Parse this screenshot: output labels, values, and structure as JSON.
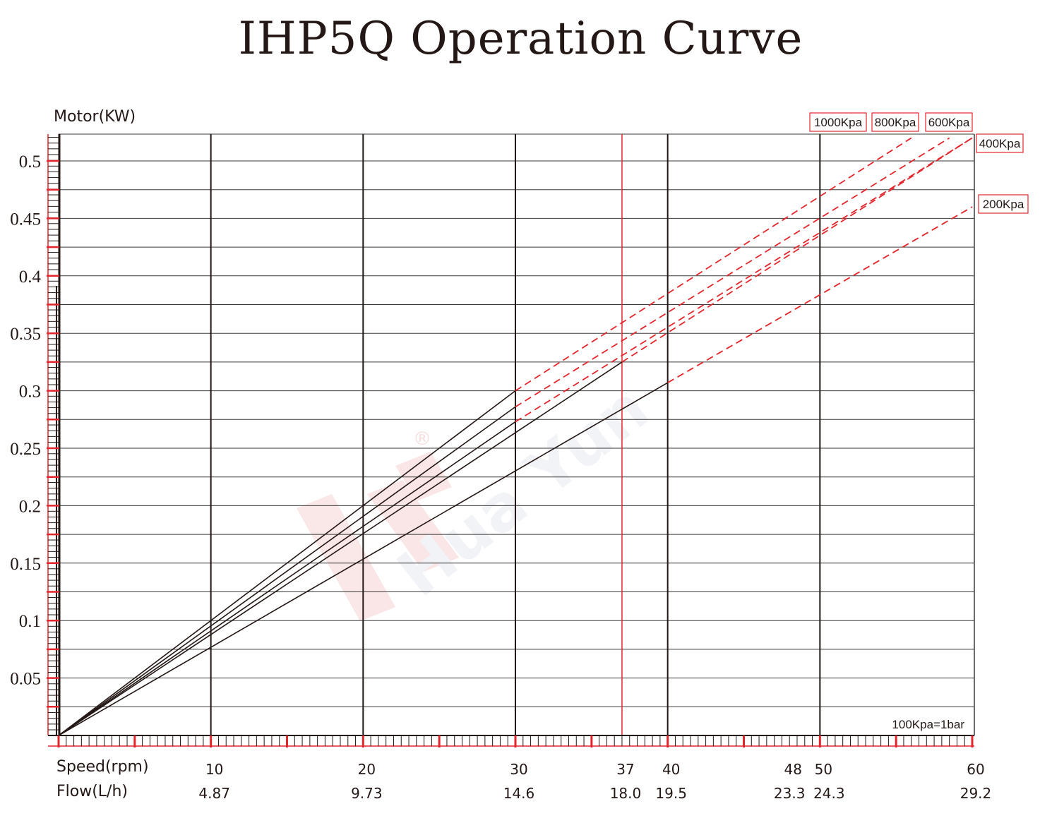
{
  "page": {
    "title": "IHP5Q Operation Curve"
  },
  "colors": {
    "text": "#231815",
    "accent": "#e3262d",
    "line": "#231815",
    "watermark": "#e8eaf0"
  },
  "watermark": {
    "text": "Hua Yun",
    "mark": "®"
  },
  "chart_data": {
    "type": "line",
    "title": "IHP5Q Operation Curve",
    "ylabel": "Motor(KW)",
    "xlabel": "Speed(rpm)",
    "x2label": "Flow(L/h)",
    "ylim": [
      0,
      0.52
    ],
    "xlim": [
      0,
      60
    ],
    "yticks": [
      {
        "value": 0.05,
        "label": "0.05"
      },
      {
        "value": 0.1,
        "label": "0.1"
      },
      {
        "value": 0.15,
        "label": "0.15"
      },
      {
        "value": 0.2,
        "label": "0.2"
      },
      {
        "value": 0.25,
        "label": "0.25"
      },
      {
        "value": 0.3,
        "label": "0.3"
      },
      {
        "value": 0.35,
        "label": "0.35"
      },
      {
        "value": 0.4,
        "label": "0.4"
      },
      {
        "value": 0.45,
        "label": "0.45"
      },
      {
        "value": 0.5,
        "label": "0.5"
      }
    ],
    "xticks": [
      {
        "value": 10,
        "speed": "10",
        "flow": "4.87"
      },
      {
        "value": 20,
        "speed": "20",
        "flow": "9.73"
      },
      {
        "value": 30,
        "speed": "30",
        "flow": "14.6"
      },
      {
        "value": 37,
        "speed": "37",
        "flow": "18.0"
      },
      {
        "value": 40,
        "speed": "40",
        "flow": "19.5"
      },
      {
        "value": 48,
        "speed": "48",
        "flow": "23.3"
      },
      {
        "value": 50,
        "speed": "50",
        "flow": "24.3"
      },
      {
        "value": 60,
        "speed": "60",
        "flow": "29.2"
      }
    ],
    "vlines_dark": [
      10,
      20,
      30,
      40,
      50
    ],
    "vline_red": 37,
    "series": [
      {
        "name": "1000Kpa",
        "solid": [
          [
            0,
            0
          ],
          [
            30,
            0.3
          ]
        ],
        "dashed": [
          [
            30,
            0.3
          ],
          [
            56,
            0.52
          ]
        ]
      },
      {
        "name": "800Kpa",
        "solid": [
          [
            0,
            0
          ],
          [
            30,
            0.286
          ]
        ],
        "dashed": [
          [
            30,
            0.286
          ],
          [
            58.5,
            0.52
          ]
        ]
      },
      {
        "name": "600Kpa",
        "solid": [
          [
            0,
            0
          ],
          [
            30,
            0.273
          ]
        ],
        "dashed": [
          [
            30,
            0.273
          ],
          [
            60,
            0.52
          ]
        ]
      },
      {
        "name": "400Kpa",
        "solid": [
          [
            0,
            0
          ],
          [
            37,
            0.325
          ]
        ],
        "dashed": [
          [
            37,
            0.325
          ],
          [
            60,
            0.52
          ]
        ]
      },
      {
        "name": "200Kpa",
        "solid": [
          [
            0,
            0
          ],
          [
            40,
            0.307
          ]
        ],
        "dashed": [
          [
            40,
            0.307
          ],
          [
            60,
            0.46
          ]
        ]
      }
    ],
    "annotation": "100Kpa=1bar"
  }
}
